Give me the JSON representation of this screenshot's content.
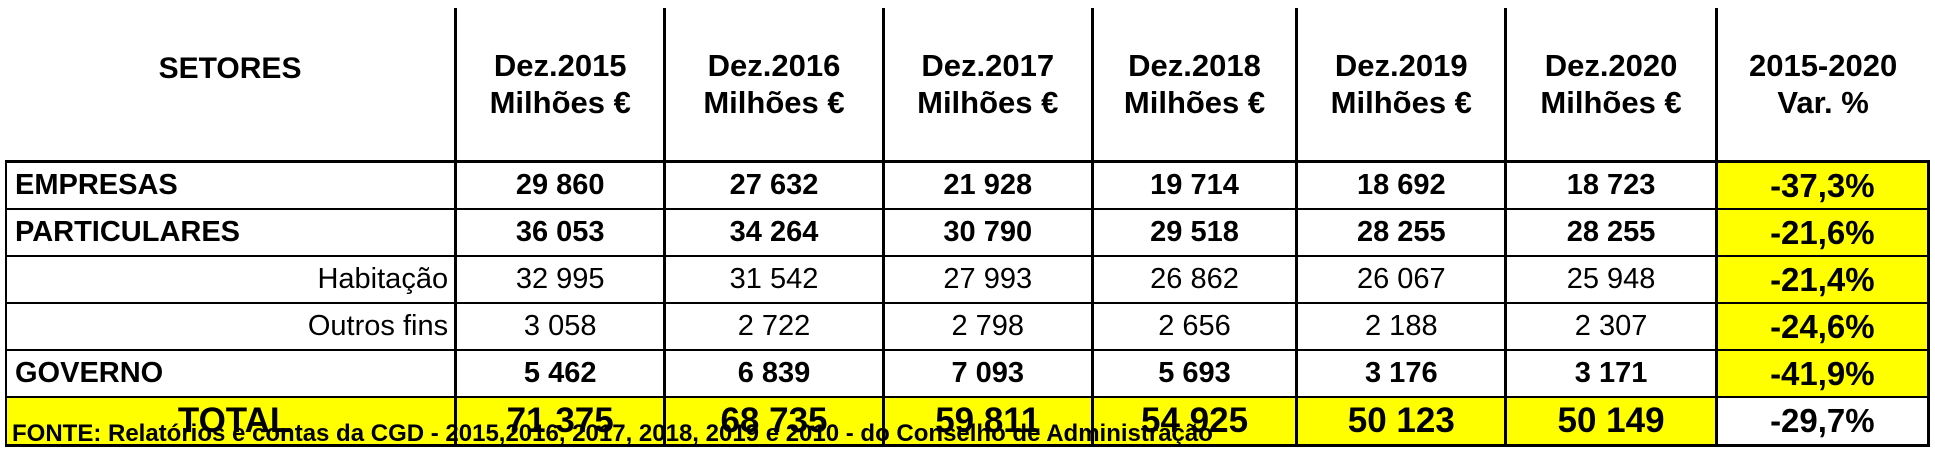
{
  "table": {
    "header": [
      "SETORES",
      "Dez.2015\nMilhões €",
      "Dez.2016\nMilhões €",
      "Dez.2017\nMilhões €",
      "Dez.2018\nMilhões €",
      "Dez.2019\nMilhões €",
      "Dez.2020\nMilhões €",
      "2015-2020\nVar. %"
    ],
    "rows": [
      [
        "EMPRESAS",
        "29 860",
        "27 632",
        "21 928",
        "19 714",
        "18 692",
        "18 723",
        "-37,3%"
      ],
      [
        "PARTICULARES",
        "36 053",
        "34 264",
        "30 790",
        "29 518",
        "28 255",
        "28 255",
        "-21,6%"
      ],
      [
        "Habitação",
        "32 995",
        "31 542",
        "27 993",
        "26 862",
        "26 067",
        "25 948",
        "-21,4%"
      ],
      [
        "Outros fins",
        "3 058",
        "2 722",
        "2 798",
        "2 656",
        "2 188",
        "2 307",
        "-24,6%"
      ],
      [
        "GOVERNO",
        "5 462",
        "6 839",
        "7 093",
        "5 693",
        "3 176",
        "3 171",
        "-41,9%"
      ],
      [
        "TOTAL",
        "71 375",
        "68 735",
        "59 811",
        "54 925",
        "50 123",
        "50 149",
        "-29,7%"
      ]
    ]
  },
  "footnote": "FONTE: Relatórios e contas da CGD - 2015,2016, 2017, 2018, 2019 e 2010 - do Conselho de Administração"
}
